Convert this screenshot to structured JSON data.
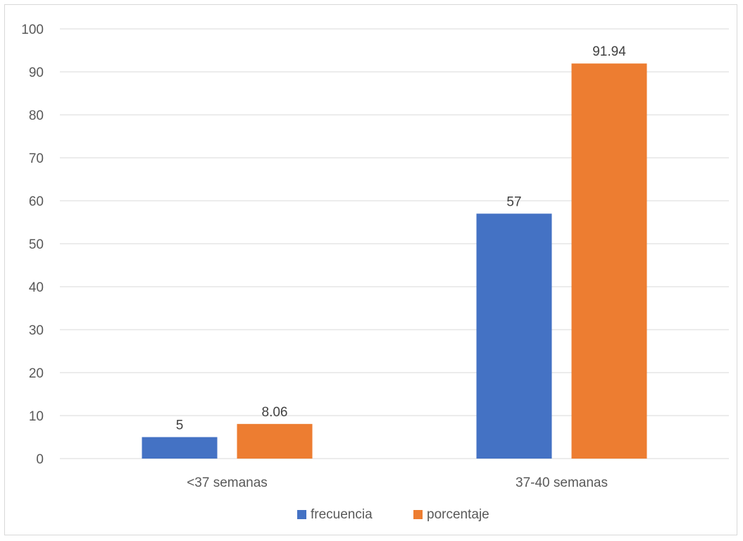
{
  "chart_data": {
    "type": "bar",
    "categories": [
      "<37 semanas",
      "37-40 semanas"
    ],
    "series": [
      {
        "name": "frecuencia",
        "values": [
          5,
          57
        ],
        "color": "#4472c4"
      },
      {
        "name": "porcentaje",
        "values": [
          8.06,
          91.94
        ],
        "color": "#ed7d31"
      }
    ],
    "data_labels": [
      [
        "5",
        "57"
      ],
      [
        "8.06",
        "91.94"
      ]
    ],
    "ylim": [
      0,
      100
    ],
    "yticks": [
      0,
      10,
      20,
      30,
      40,
      50,
      60,
      70,
      80,
      90,
      100
    ],
    "grid": true,
    "gridline_color": "#d9d9d9",
    "legend_position": "bottom"
  }
}
